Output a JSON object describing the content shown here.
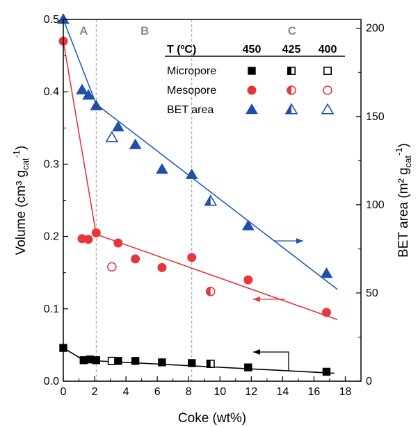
{
  "chart_data": {
    "type": "scatter",
    "xlabel": "Coke (wt%)",
    "ylabel_left": "Volume (cm³ g",
    "ylabel_left_sub": "cat",
    "ylabel_left_exp": "-1",
    "ylabel_left_close": ")",
    "ylabel_right": "BET area (m² g",
    "ylabel_right_sub": "cat",
    "ylabel_right_exp": "-1",
    "ylabel_right_close": ")",
    "xlim": [
      0,
      19
    ],
    "ylim_left": [
      0,
      0.5
    ],
    "ylim_right": [
      0,
      205
    ],
    "xticks": [
      0,
      2,
      4,
      6,
      8,
      10,
      12,
      14,
      16,
      18
    ],
    "yticks_left": [
      0.0,
      0.1,
      0.2,
      0.3,
      0.4,
      0.5
    ],
    "yticks_right": [
      0,
      50,
      100,
      150,
      200
    ],
    "xtick_labels": [
      "0",
      "2",
      "4",
      "6",
      "8",
      "10",
      "12",
      "14",
      "16",
      "18"
    ],
    "ytick_labels_left": [
      "0.0",
      "0.1",
      "0.2",
      "0.3",
      "0.4",
      "0.5"
    ],
    "ytick_labels_right": [
      "0",
      "50",
      "100",
      "150",
      "200"
    ],
    "regions": [
      {
        "label": "A",
        "x": 1.3
      },
      {
        "label": "B",
        "x": 5.2
      },
      {
        "label": "C",
        "x": 14.6
      }
    ],
    "region_boundaries": [
      2.1,
      8.2
    ],
    "legend": {
      "header": "T (ºC)",
      "temperatures": [
        "450",
        "425",
        "400"
      ],
      "rows": [
        "Micropore",
        "Mesopore",
        "BET area"
      ]
    },
    "colors": {
      "micropore": "#000000",
      "mesopore": "#e8353a",
      "bet": "#1f4fa8",
      "mesopore_line": "#e8353a",
      "bet_line": "#1f5fb8",
      "boundary": "#999999"
    },
    "series": [
      {
        "name": "Micropore",
        "axis": "left",
        "marker": "square",
        "points": [
          {
            "x": 0.0,
            "y": 0.046,
            "fill": "full"
          },
          {
            "x": 1.3,
            "y": 0.029,
            "fill": "full"
          },
          {
            "x": 1.7,
            "y": 0.03,
            "fill": "full"
          },
          {
            "x": 2.1,
            "y": 0.029,
            "fill": "full"
          },
          {
            "x": 3.1,
            "y": 0.028,
            "fill": "empty"
          },
          {
            "x": 3.5,
            "y": 0.028,
            "fill": "full"
          },
          {
            "x": 4.6,
            "y": 0.028,
            "fill": "full"
          },
          {
            "x": 6.3,
            "y": 0.026,
            "fill": "full"
          },
          {
            "x": 8.2,
            "y": 0.025,
            "fill": "full"
          },
          {
            "x": 9.4,
            "y": 0.024,
            "fill": "half"
          },
          {
            "x": 11.8,
            "y": 0.019,
            "fill": "full"
          },
          {
            "x": 16.8,
            "y": 0.013,
            "fill": "full"
          }
        ],
        "fit": [
          [
            0,
            0.046
          ],
          [
            1.3,
            0.029
          ],
          [
            17.3,
            0.011
          ]
        ]
      },
      {
        "name": "Mesopore",
        "axis": "left",
        "marker": "circle",
        "points": [
          {
            "x": 0.0,
            "y": 0.47,
            "fill": "full"
          },
          {
            "x": 1.2,
            "y": 0.197,
            "fill": "full"
          },
          {
            "x": 1.6,
            "y": 0.196,
            "fill": "full"
          },
          {
            "x": 2.1,
            "y": 0.205,
            "fill": "full"
          },
          {
            "x": 3.1,
            "y": 0.158,
            "fill": "empty"
          },
          {
            "x": 3.5,
            "y": 0.191,
            "fill": "full"
          },
          {
            "x": 4.6,
            "y": 0.169,
            "fill": "full"
          },
          {
            "x": 6.3,
            "y": 0.157,
            "fill": "full"
          },
          {
            "x": 8.2,
            "y": 0.171,
            "fill": "full"
          },
          {
            "x": 9.4,
            "y": 0.124,
            "fill": "half"
          },
          {
            "x": 11.8,
            "y": 0.14,
            "fill": "full"
          },
          {
            "x": 16.8,
            "y": 0.095,
            "fill": "full"
          }
        ],
        "fit": [
          [
            0,
            0.47
          ],
          [
            2.1,
            0.203
          ],
          [
            17.5,
            0.085
          ]
        ]
      },
      {
        "name": "BET area",
        "axis": "right",
        "marker": "triangle",
        "points": [
          {
            "x": 0.0,
            "y": 205,
            "fill": "full"
          },
          {
            "x": 1.2,
            "y": 165,
            "fill": "full"
          },
          {
            "x": 1.6,
            "y": 162,
            "fill": "full"
          },
          {
            "x": 2.1,
            "y": 156,
            "fill": "full"
          },
          {
            "x": 3.1,
            "y": 138,
            "fill": "empty"
          },
          {
            "x": 3.5,
            "y": 144,
            "fill": "full"
          },
          {
            "x": 4.6,
            "y": 134,
            "fill": "full"
          },
          {
            "x": 6.3,
            "y": 120,
            "fill": "full"
          },
          {
            "x": 8.2,
            "y": 117,
            "fill": "full"
          },
          {
            "x": 9.4,
            "y": 102,
            "fill": "half"
          },
          {
            "x": 11.8,
            "y": 88,
            "fill": "full"
          },
          {
            "x": 16.8,
            "y": 61,
            "fill": "full"
          }
        ],
        "fit": [
          [
            0,
            205
          ],
          [
            2.1,
            157
          ],
          [
            17.5,
            52
          ]
        ]
      }
    ]
  }
}
